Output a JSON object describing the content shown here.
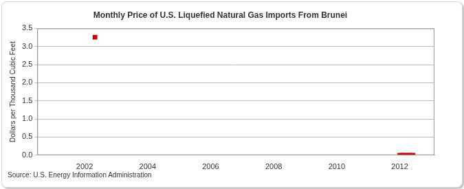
{
  "chart_data": {
    "type": "line",
    "title": "Monthly Price of U.S. Liquefied Natural Gas Imports From Brunei",
    "y_label": "Dollars per Thousand Cubic Feet",
    "source": "Source: U.S. Energy Information Administration",
    "series": [
      {
        "name": "Brunei",
        "color": "#cc0000",
        "marker": "square",
        "line_style": "solid",
        "x": [
          2002.33,
          2002.42,
          2012.0,
          2012.08,
          2012.17,
          2012.25,
          2012.33,
          2012.42
        ],
        "values": [
          3.26,
          null,
          0,
          0,
          0,
          0,
          0,
          0
        ]
      }
    ],
    "xlim": [
      2000.5,
      2013.1
    ],
    "xticks": [
      2002,
      2004,
      2006,
      2008,
      2010,
      2012
    ],
    "ylim": [
      0,
      3.5
    ],
    "yticks": [
      {
        "value": 0,
        "label": "0.0"
      },
      0.5,
      {
        "value": 1,
        "label": "1.0"
      },
      1.5,
      {
        "value": 2,
        "label": "2.0"
      },
      2.5,
      {
        "value": 3,
        "label": "3.0"
      },
      3.5
    ],
    "grid": true
  }
}
